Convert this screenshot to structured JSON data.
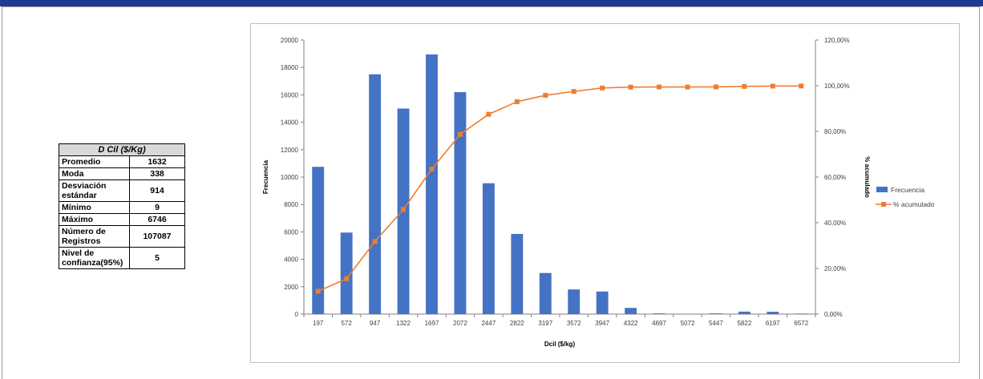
{
  "stats": {
    "header": "D Cil ($/Kg)",
    "rows": [
      {
        "label": "Promedio",
        "value": "1632"
      },
      {
        "label": "Moda",
        "value": "338"
      },
      {
        "label": "Desviación estándar",
        "value": "914"
      },
      {
        "label": "Mínimo",
        "value": "9"
      },
      {
        "label": "Máximo",
        "value": "6746"
      },
      {
        "label": "Número de Registros",
        "value": "107087"
      },
      {
        "label": "Nivel de confianza(95%)",
        "value": "5"
      }
    ]
  },
  "chart_data": {
    "type": "bar",
    "categories": [
      "197",
      "572",
      "947",
      "1322",
      "1697",
      "2072",
      "2447",
      "2822",
      "3197",
      "3572",
      "3947",
      "4322",
      "4697",
      "5072",
      "5447",
      "5822",
      "6197",
      "6572"
    ],
    "series": [
      {
        "name": "Frecuencia",
        "type": "bar",
        "axis": "left",
        "color": "#4472c4",
        "values": [
          10750,
          5950,
          17500,
          15000,
          18950,
          16200,
          9550,
          5850,
          3000,
          1800,
          1650,
          450,
          50,
          0,
          50,
          180,
          170,
          40
        ]
      },
      {
        "name": "% acumulado",
        "type": "line",
        "axis": "right",
        "color": "#ed7d31",
        "values": [
          10.0,
          15.5,
          31.8,
          45.8,
          63.5,
          78.7,
          87.5,
          93.0,
          95.8,
          97.5,
          99.0,
          99.4,
          99.45,
          99.45,
          99.5,
          99.7,
          99.85,
          99.9
        ]
      }
    ],
    "xlabel": "Dcil ($/kg)",
    "ylabel": "Frecuencia",
    "y2label": "% acumulado",
    "ylim": [
      0,
      20000
    ],
    "yticks": [
      "0",
      "2000",
      "4000",
      "6000",
      "8000",
      "10000",
      "12000",
      "14000",
      "16000",
      "18000",
      "20000"
    ],
    "y2lim": [
      0,
      120
    ],
    "y2ticks": [
      "0,00%",
      "20,00%",
      "40,00%",
      "60,00%",
      "80,00%",
      "100,00%",
      "120,00%"
    ],
    "grid": false,
    "legend": "right"
  }
}
